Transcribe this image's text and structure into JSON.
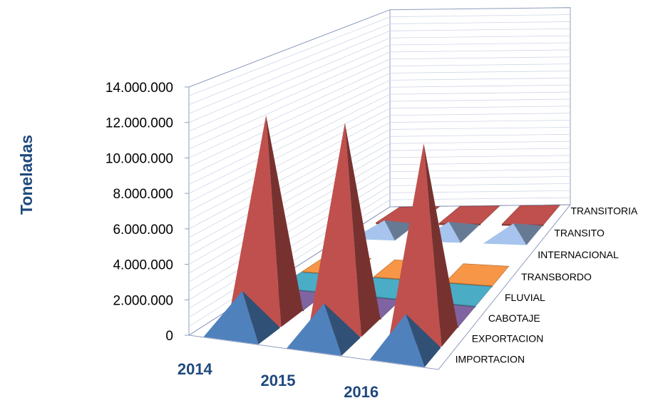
{
  "chart_data": {
    "type": "bar",
    "subtype": "3d-pyramid",
    "ylabel": "Toneladas",
    "ylim": [
      0,
      14000000
    ],
    "y_ticks": [
      "0",
      "2.000.000",
      "4.000.000",
      "6.000.000",
      "8.000.000",
      "10.000.000",
      "12.000.000",
      "14.000.000"
    ],
    "categories": [
      "2014",
      "2015",
      "2016"
    ],
    "series": [
      {
        "name": "IMPORTACION",
        "color": "#4f81bd",
        "shape": "pyramid",
        "values": [
          2400000,
          2300000,
          2300000
        ]
      },
      {
        "name": "EXPORTACION",
        "color": "#c0504d",
        "shape": "pyramid",
        "values": [
          12100000,
          12200000,
          11500000
        ]
      },
      {
        "name": "CABOTAJE",
        "color": "#8064a2",
        "shape": "flat",
        "values": [
          20000,
          20000,
          20000
        ]
      },
      {
        "name": "FLUVIAL",
        "color": "#4bacc6",
        "shape": "flat",
        "values": [
          20000,
          20000,
          20000
        ]
      },
      {
        "name": "TRANSBORDO",
        "color": "#f79646",
        "shape": "flat",
        "values": [
          20000,
          20000,
          20000
        ]
      },
      {
        "name": "INTERNACIONAL",
        "color": "#4f81bd",
        "shape": "hidden",
        "values": [
          0,
          0,
          0
        ]
      },
      {
        "name": "TRANSITO",
        "color": "#a6c4ee",
        "shape": "pyramid",
        "values": [
          900000,
          900000,
          900000
        ]
      },
      {
        "name": "TRANSITORIA",
        "color": "#c0504d",
        "shape": "flat",
        "values": [
          20000,
          20000,
          20000
        ]
      }
    ],
    "grid": true,
    "legend": "depth-axis-labels"
  }
}
